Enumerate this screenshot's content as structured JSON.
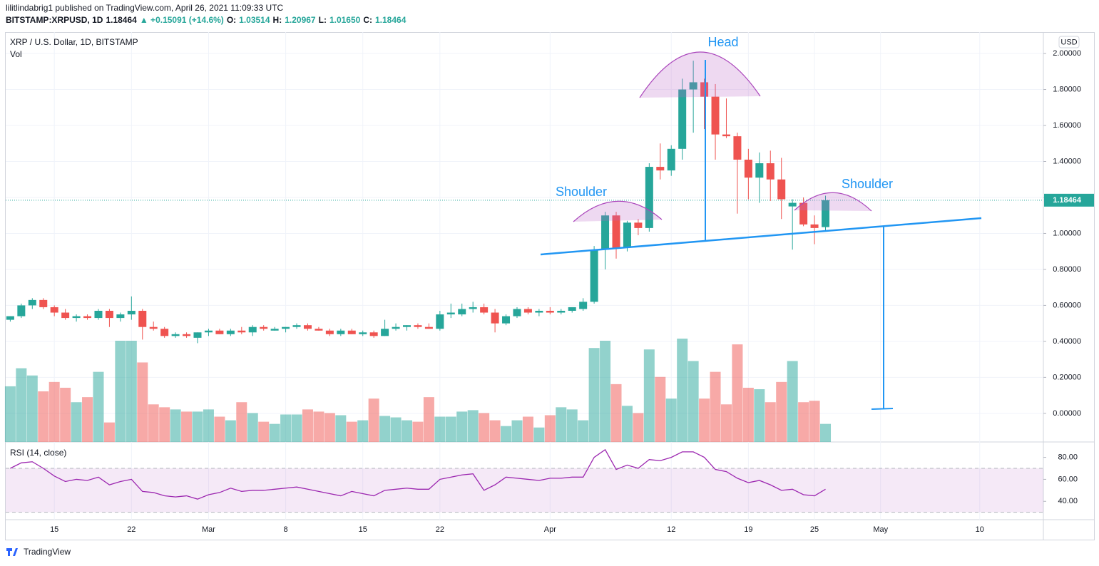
{
  "header": {
    "line1": "lilitlindabrig1 published on TradingView.com, April 26, 2021 11:09:33 UTC",
    "symbol": "BITSTAMP:XRPUSD, 1D",
    "price": "1.18464",
    "change": "▲ +0.15091 (+14.6%)",
    "ohlc": [
      {
        "label": "O:",
        "value": "1.03514"
      },
      {
        "label": "H:",
        "value": "1.20967"
      },
      {
        "label": "L:",
        "value": "1.01650"
      },
      {
        "label": "C:",
        "value": "1.18464"
      }
    ]
  },
  "annotations": {
    "head": "Head",
    "left_shoulder": "Shoulder",
    "right_shoulder": "Shoulder"
  },
  "footer": {
    "brand": "TradingView"
  },
  "chart_data": [
    {
      "type": "candlestick",
      "title": "XRP / U.S. Dollar, 1D, BITSTAMP",
      "currency": "USD",
      "up_color": "#26a69a",
      "down_color": "#ef5350",
      "x": [
        "2021-02-11",
        "2021-02-12",
        "2021-02-13",
        "2021-02-14",
        "2021-02-15",
        "2021-02-16",
        "2021-02-17",
        "2021-02-18",
        "2021-02-19",
        "2021-02-20",
        "2021-02-21",
        "2021-02-22",
        "2021-02-23",
        "2021-02-24",
        "2021-02-25",
        "2021-02-26",
        "2021-02-27",
        "2021-02-28",
        "2021-03-01",
        "2021-03-02",
        "2021-03-03",
        "2021-03-04",
        "2021-03-05",
        "2021-03-06",
        "2021-03-07",
        "2021-03-08",
        "2021-03-09",
        "2021-03-10",
        "2021-03-11",
        "2021-03-12",
        "2021-03-13",
        "2021-03-14",
        "2021-03-15",
        "2021-03-16",
        "2021-03-17",
        "2021-03-18",
        "2021-03-19",
        "2021-03-20",
        "2021-03-21",
        "2021-03-22",
        "2021-03-23",
        "2021-03-24",
        "2021-03-25",
        "2021-03-26",
        "2021-03-27",
        "2021-03-28",
        "2021-03-29",
        "2021-03-30",
        "2021-03-31",
        "2021-04-01",
        "2021-04-02",
        "2021-04-03",
        "2021-04-04",
        "2021-04-05",
        "2021-04-06",
        "2021-04-07",
        "2021-04-08",
        "2021-04-09",
        "2021-04-10",
        "2021-04-11",
        "2021-04-12",
        "2021-04-13",
        "2021-04-14",
        "2021-04-15",
        "2021-04-16",
        "2021-04-17",
        "2021-04-18",
        "2021-04-19",
        "2021-04-20",
        "2021-04-21",
        "2021-04-22",
        "2021-04-23",
        "2021-04-24",
        "2021-04-25",
        "2021-04-26"
      ],
      "open": [
        0.52,
        0.54,
        0.6,
        0.63,
        0.59,
        0.56,
        0.53,
        0.54,
        0.53,
        0.57,
        0.53,
        0.55,
        0.57,
        0.48,
        0.47,
        0.43,
        0.44,
        0.42,
        0.45,
        0.46,
        0.44,
        0.46,
        0.45,
        0.48,
        0.46,
        0.47,
        0.48,
        0.49,
        0.47,
        0.46,
        0.44,
        0.46,
        0.44,
        0.45,
        0.43,
        0.47,
        0.48,
        0.49,
        0.48,
        0.47,
        0.55,
        0.55,
        0.58,
        0.59,
        0.56,
        0.5,
        0.54,
        0.58,
        0.56,
        0.57,
        0.56,
        0.57,
        0.58,
        0.62,
        0.91,
        1.1,
        0.92,
        1.06,
        1.03,
        1.37,
        1.35,
        1.47,
        1.8,
        1.84,
        1.76,
        1.55,
        1.54,
        1.41,
        1.31,
        1.39,
        1.3,
        1.15,
        1.17,
        1.05,
        1.03514
      ],
      "high": [
        0.54,
        0.61,
        0.64,
        0.64,
        0.6,
        0.58,
        0.55,
        0.55,
        0.58,
        0.58,
        0.56,
        0.65,
        0.58,
        0.51,
        0.48,
        0.45,
        0.45,
        0.45,
        0.47,
        0.47,
        0.47,
        0.48,
        0.49,
        0.49,
        0.48,
        0.48,
        0.5,
        0.5,
        0.48,
        0.47,
        0.47,
        0.47,
        0.46,
        0.46,
        0.52,
        0.5,
        0.49,
        0.5,
        0.5,
        0.57,
        0.61,
        0.61,
        0.62,
        0.61,
        0.58,
        0.55,
        0.59,
        0.59,
        0.58,
        0.59,
        0.58,
        0.59,
        0.64,
        0.93,
        1.12,
        1.12,
        1.07,
        1.08,
        1.39,
        1.5,
        1.49,
        1.86,
        1.96,
        1.86,
        1.83,
        1.75,
        1.56,
        1.47,
        1.45,
        1.46,
        1.42,
        1.19,
        1.2,
        1.1,
        1.20967
      ],
      "low": [
        0.51,
        0.53,
        0.58,
        0.58,
        0.54,
        0.52,
        0.51,
        0.52,
        0.52,
        0.48,
        0.51,
        0.52,
        0.41,
        0.46,
        0.42,
        0.42,
        0.42,
        0.39,
        0.43,
        0.44,
        0.43,
        0.44,
        0.43,
        0.46,
        0.46,
        0.45,
        0.47,
        0.46,
        0.46,
        0.43,
        0.43,
        0.44,
        0.43,
        0.42,
        0.43,
        0.46,
        0.46,
        0.47,
        0.47,
        0.46,
        0.53,
        0.54,
        0.56,
        0.55,
        0.45,
        0.49,
        0.53,
        0.55,
        0.54,
        0.55,
        0.55,
        0.56,
        0.57,
        0.61,
        0.8,
        0.86,
        0.9,
        0.99,
        1.01,
        1.3,
        1.32,
        1.41,
        1.56,
        1.58,
        1.41,
        1.53,
        1.11,
        1.19,
        1.17,
        1.18,
        1.08,
        0.91,
        1.04,
        0.94,
        1.0165
      ],
      "close": [
        0.54,
        0.6,
        0.63,
        0.59,
        0.56,
        0.53,
        0.54,
        0.53,
        0.57,
        0.53,
        0.55,
        0.57,
        0.48,
        0.47,
        0.43,
        0.44,
        0.43,
        0.45,
        0.46,
        0.44,
        0.46,
        0.45,
        0.48,
        0.47,
        0.47,
        0.48,
        0.49,
        0.47,
        0.46,
        0.44,
        0.46,
        0.44,
        0.45,
        0.43,
        0.47,
        0.48,
        0.49,
        0.48,
        0.47,
        0.55,
        0.56,
        0.58,
        0.59,
        0.56,
        0.5,
        0.54,
        0.58,
        0.56,
        0.57,
        0.56,
        0.57,
        0.59,
        0.62,
        0.91,
        1.1,
        0.92,
        1.06,
        1.03,
        1.37,
        1.35,
        1.47,
        1.8,
        1.84,
        1.76,
        1.55,
        1.54,
        1.41,
        1.31,
        1.39,
        1.3,
        1.19,
        1.17,
        1.05,
        1.03,
        1.18464
      ],
      "volume": {
        "name": "Vol",
        "values": [
          77,
          102,
          92,
          70,
          83,
          75,
          55,
          62,
          97,
          27,
          140,
          140,
          110,
          52,
          48,
          45,
          42,
          42,
          45,
          35,
          30,
          55,
          40,
          28,
          25,
          38,
          38,
          45,
          42,
          40,
          37,
          28,
          30,
          60,
          36,
          34,
          30,
          28,
          62,
          35,
          35,
          42,
          44,
          40,
          30,
          22,
          30,
          35,
          20,
          37,
          48,
          45,
          30,
          130,
          140,
          80,
          50,
          40,
          128,
          90,
          60,
          143,
          112,
          60,
          97,
          52,
          135,
          75,
          73,
          55,
          83,
          112,
          55,
          57,
          25
        ]
      },
      "last_price": {
        "value": 1.18464,
        "label": "1.18464"
      },
      "ylim": [
        -0.159,
        2.119
      ],
      "yticks": [
        {
          "value": 0,
          "label": "0.00000"
        },
        {
          "value": 0.2,
          "label": "0.20000"
        },
        {
          "value": 0.4,
          "label": "0.40000"
        },
        {
          "value": 0.6,
          "label": "0.60000"
        },
        {
          "value": 0.8,
          "label": "0.80000"
        },
        {
          "value": 1,
          "label": "1.00000"
        },
        {
          "value": 1.2,
          "label": "1.20000"
        },
        {
          "value": 1.4,
          "label": "1.40000"
        },
        {
          "value": 1.6,
          "label": "1.60000"
        },
        {
          "value": 1.8,
          "label": "1.80000"
        },
        {
          "value": 2,
          "label": "2.00000"
        }
      ],
      "xlim": [
        "2021-02-11",
        "2021-05-15"
      ],
      "xticks": [
        {
          "value": "2021-02-15",
          "label": "15"
        },
        {
          "value": "2021-02-22",
          "label": "22"
        },
        {
          "value": "2021-03-01",
          "label": "Mar"
        },
        {
          "value": "2021-03-08",
          "label": "8"
        },
        {
          "value": "2021-03-15",
          "label": "15"
        },
        {
          "value": "2021-03-22",
          "label": "22"
        },
        {
          "value": "2021-04-01",
          "label": "Apr"
        },
        {
          "value": "2021-04-12",
          "label": "12"
        },
        {
          "value": "2021-04-19",
          "label": "19"
        },
        {
          "value": "2021-04-25",
          "label": "25"
        },
        {
          "value": "2021-05-01",
          "label": "May"
        },
        {
          "value": "2021-05-10",
          "label": "10"
        }
      ],
      "grid": true
    },
    {
      "type": "line",
      "title": "RSI (14, close)",
      "color": "#9c27b0",
      "band": [
        30,
        70
      ],
      "values": [
        70,
        75,
        76,
        70,
        63,
        58,
        60,
        59,
        62,
        55,
        58,
        60,
        49,
        48,
        45,
        44,
        45,
        42,
        46,
        48,
        52,
        49,
        50,
        50,
        51,
        52,
        53,
        51,
        49,
        47,
        45,
        49,
        47,
        45,
        50,
        51,
        52,
        51,
        51,
        60,
        62,
        64,
        65,
        50,
        55,
        62,
        61,
        60,
        59,
        61,
        61,
        62,
        62,
        80,
        87,
        69,
        73,
        70,
        78,
        77,
        80,
        85,
        85,
        80,
        69,
        67,
        61,
        57,
        59,
        55,
        50,
        51,
        46,
        45,
        51
      ],
      "ylim": [
        23.3,
        94
      ],
      "yticks": [
        {
          "value": 40,
          "label": "40.00"
        },
        {
          "value": 60,
          "label": "60.00"
        },
        {
          "value": 80,
          "label": "80.00"
        }
      ]
    }
  ]
}
